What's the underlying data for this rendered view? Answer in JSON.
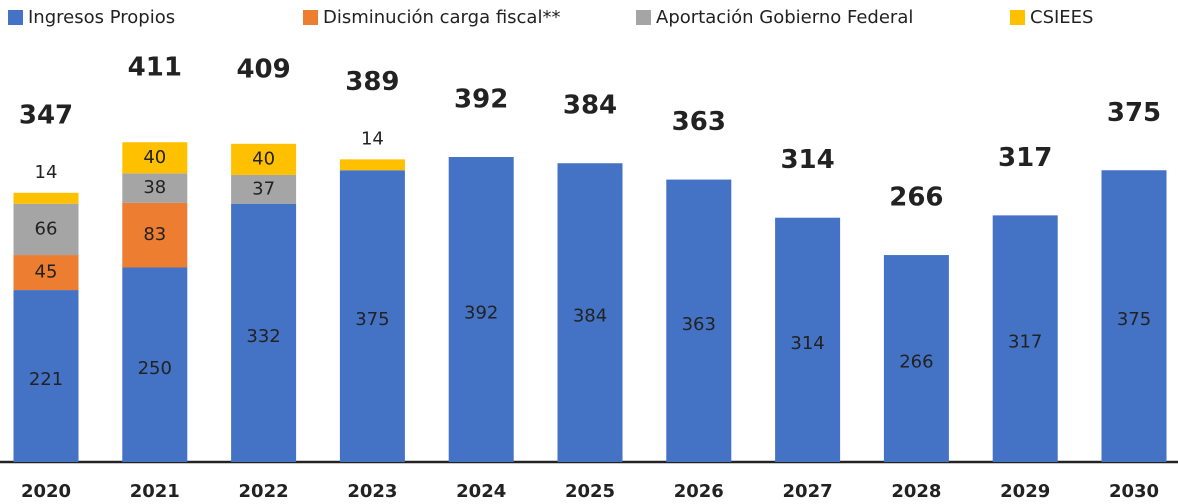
{
  "chart_data": {
    "type": "stacked_bar",
    "categories": [
      "2020",
      "2021",
      "2022",
      "2023",
      "2024",
      "2025",
      "2026",
      "2027",
      "2028",
      "2029",
      "2030"
    ],
    "series": [
      {
        "name": "Ingresos Propios",
        "color": "#4472c4",
        "values": [
          221,
          250,
          332,
          375,
          392,
          384,
          363,
          314,
          266,
          317,
          375
        ]
      },
      {
        "name": "Disminución carga fiscal**",
        "color": "#ed7d31",
        "values": [
          45,
          83,
          null,
          null,
          null,
          null,
          null,
          null,
          null,
          null,
          null
        ]
      },
      {
        "name": "Aportación Gobierno Federal",
        "color": "#a5a5a5",
        "values": [
          66,
          38,
          37,
          null,
          null,
          null,
          null,
          null,
          null,
          null,
          null
        ]
      },
      {
        "name": "CSIEES",
        "color": "#ffc000",
        "values": [
          14,
          40,
          40,
          14,
          null,
          null,
          null,
          null,
          null,
          null,
          null
        ]
      }
    ],
    "totals": [
      347,
      411,
      409,
      389,
      392,
      384,
      363,
      314,
      266,
      317,
      375
    ]
  }
}
